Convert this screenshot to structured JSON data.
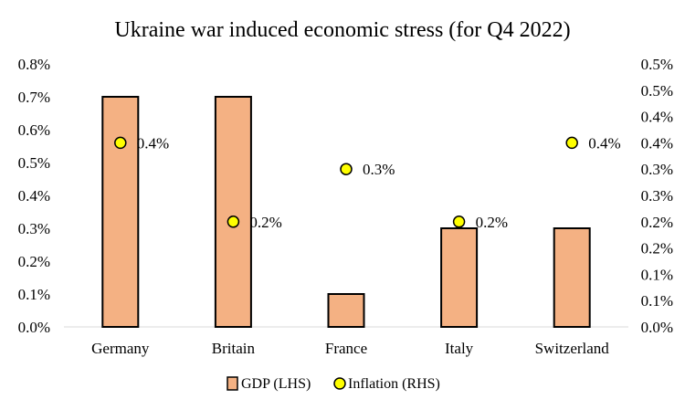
{
  "chart_data": {
    "type": "bar",
    "title": "Ukraine war induced economic stress (for Q4 2022)",
    "categories": [
      "Germany",
      "Britain",
      "France",
      "Italy",
      "Switzerland"
    ],
    "series": [
      {
        "name": "GDP (LHS)",
        "kind": "bar",
        "axis": "left",
        "values": [
          0.7,
          0.7,
          0.1,
          0.3,
          0.3
        ],
        "color": "#F4B183"
      },
      {
        "name": "Inflation (RHS)",
        "kind": "scatter",
        "axis": "right",
        "values": [
          0.35,
          0.2,
          0.3,
          0.2,
          0.35
        ],
        "data_labels": [
          "0.4%",
          "0.2%",
          "0.3%",
          "0.2%",
          "0.4%"
        ],
        "color": "#FFFF00"
      }
    ],
    "y_left": {
      "range": [
        0,
        0.8
      ],
      "ticks": [
        0.0,
        0.1,
        0.2,
        0.3,
        0.4,
        0.5,
        0.6,
        0.7,
        0.8
      ],
      "tick_labels": [
        "0.0%",
        "0.1%",
        "0.2%",
        "0.3%",
        "0.4%",
        "0.5%",
        "0.6%",
        "0.7%",
        "0.8%"
      ]
    },
    "y_right": {
      "range": [
        0,
        0.5
      ],
      "ticks": [
        0.0,
        0.05,
        0.1,
        0.15,
        0.2,
        0.25,
        0.3,
        0.35,
        0.4,
        0.45,
        0.5
      ],
      "tick_labels": [
        "0.0%",
        "0.1%",
        "0.1%",
        "0.2%",
        "0.2%",
        "0.3%",
        "0.3%",
        "0.4%",
        "0.4%",
        "0.5%",
        "0.5%"
      ]
    },
    "grid": false,
    "legend_position": "bottom"
  }
}
